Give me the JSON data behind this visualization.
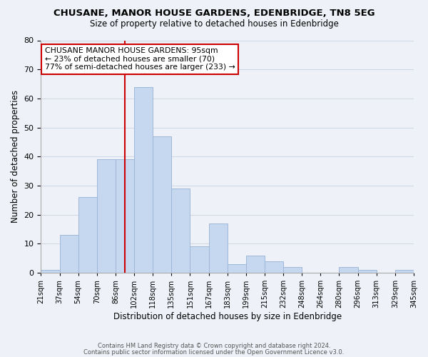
{
  "title": "CHUSANE, MANOR HOUSE GARDENS, EDENBRIDGE, TN8 5EG",
  "subtitle": "Size of property relative to detached houses in Edenbridge",
  "xlabel": "Distribution of detached houses by size in Edenbridge",
  "ylabel": "Number of detached properties",
  "footer_line1": "Contains HM Land Registry data © Crown copyright and database right 2024.",
  "footer_line2": "Contains public sector information licensed under the Open Government Licence v3.0.",
  "tick_labels": [
    "21sqm",
    "37sqm",
    "54sqm",
    "70sqm",
    "86sqm",
    "102sqm",
    "118sqm",
    "135sqm",
    "151sqm",
    "167sqm",
    "183sqm",
    "199sqm",
    "215sqm",
    "232sqm",
    "248sqm",
    "264sqm",
    "280sqm",
    "296sqm",
    "313sqm",
    "329sqm",
    "345sqm"
  ],
  "bar_heights": [
    1,
    13,
    26,
    39,
    39,
    64,
    47,
    29,
    9,
    17,
    3,
    6,
    4,
    2,
    0,
    0,
    2,
    1,
    0,
    1
  ],
  "bar_color": "#c5d8f0",
  "bar_edge_color": "#a0b8d8",
  "vline_pos": 4.5,
  "vline_color": "#cc0000",
  "ylim": [
    0,
    80
  ],
  "yticks": [
    0,
    10,
    20,
    30,
    40,
    50,
    60,
    70,
    80
  ],
  "annotation_title": "CHUSANE MANOR HOUSE GARDENS: 95sqm",
  "annotation_line2": "← 23% of detached houses are smaller (70)",
  "annotation_line3": "77% of semi-detached houses are larger (233) →",
  "annotation_box_color": "#cc0000",
  "grid_color": "#d0d8e8",
  "bg_color": "#eef2f8"
}
